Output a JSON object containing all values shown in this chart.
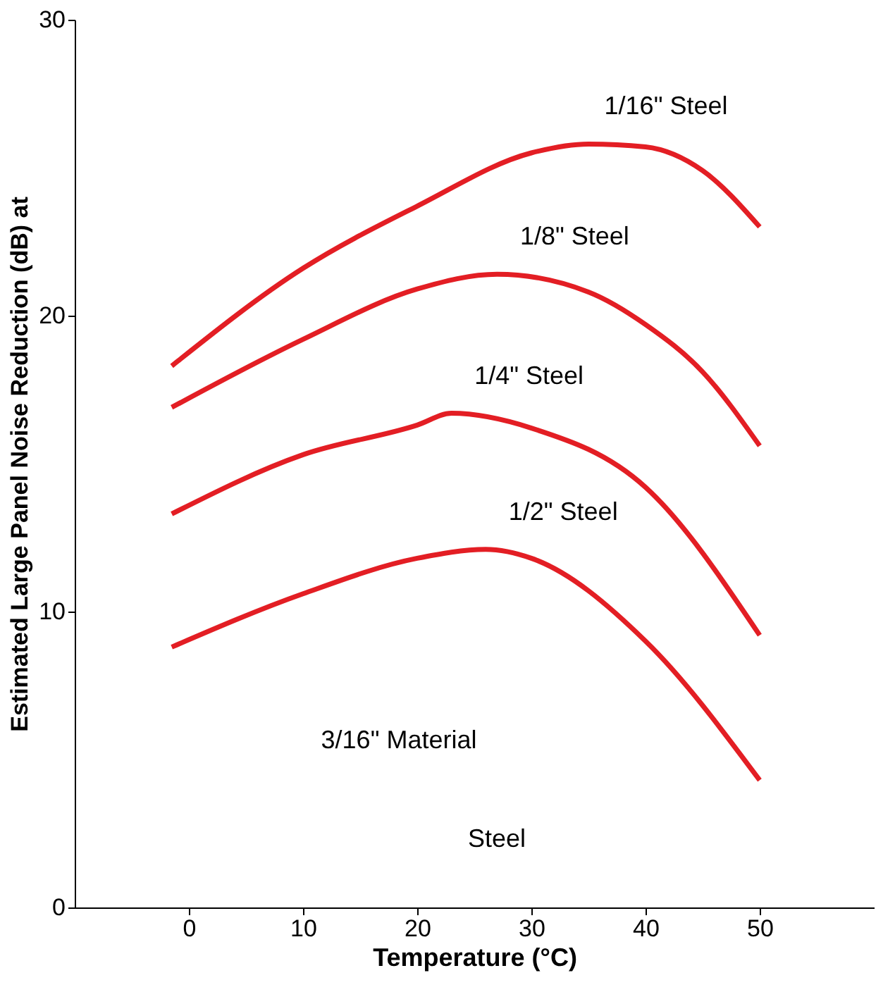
{
  "chart_data": {
    "type": "line",
    "xlabel": "Temperature (°C)",
    "ylabel": "Estimated Large Panel Noise Reduction (dB) at",
    "xlim": [
      -10,
      60
    ],
    "xticks": [
      0,
      10,
      20,
      30,
      40,
      50
    ],
    "ylim": [
      0,
      30
    ],
    "yticks": [
      0,
      10,
      20,
      30
    ],
    "grid": false,
    "marker": "none",
    "line_style": "solid",
    "x": [
      -1.5,
      10,
      20,
      30,
      35,
      40,
      45,
      50
    ],
    "series": [
      {
        "name": "1/16\" Steel",
        "color": "#e31e24",
        "values": [
          18.3,
          21.6,
          23.7,
          25.5,
          25.8,
          25.7,
          24.9,
          23.0
        ]
      },
      {
        "name": "1/8\" Steel",
        "color": "#e31e24",
        "x": [
          -1.5,
          10,
          20,
          27,
          35,
          40,
          45,
          50
        ],
        "values": [
          16.9,
          19.2,
          20.9,
          21.4,
          20.8,
          19.7,
          18.1,
          15.6
        ]
      },
      {
        "name": "1/4\" Steel",
        "color": "#e31e24",
        "x": [
          -1.5,
          10,
          20,
          23,
          30,
          40,
          50
        ],
        "values": [
          13.3,
          15.3,
          16.3,
          16.7,
          16.2,
          14.2,
          9.2
        ]
      },
      {
        "name": "1/2\" Steel",
        "color": "#e31e24",
        "x": [
          -1.5,
          10,
          20,
          26,
          30,
          40,
          50
        ],
        "values": [
          8.8,
          10.6,
          11.8,
          12.1,
          11.8,
          9.0,
          4.3
        ]
      }
    ],
    "annotations": [
      "3/16\" Material",
      "Steel"
    ]
  }
}
